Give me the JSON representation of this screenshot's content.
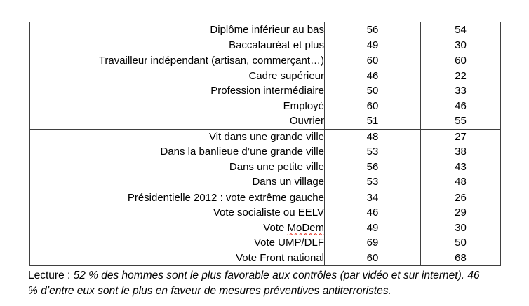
{
  "colors": {
    "border": "#3f3f3f",
    "text": "#000000",
    "spellcheck_squiggle": "#e31b0c",
    "background": "#ffffff"
  },
  "table": {
    "value_columns": 2,
    "sections": [
      {
        "name": "diplome",
        "rows": [
          {
            "label": "Diplôme inférieur au bas",
            "values": [
              "56",
              "54"
            ]
          },
          {
            "label": "Baccalauréat et plus",
            "values": [
              "49",
              "30"
            ]
          }
        ]
      },
      {
        "name": "profession",
        "rows": [
          {
            "label": "Travailleur indépendant (artisan, commerçant…)",
            "values": [
              "60",
              "60"
            ]
          },
          {
            "label": "Cadre supérieur",
            "values": [
              "46",
              "22"
            ]
          },
          {
            "label": "Profession intermédiaire",
            "values": [
              "50",
              "33"
            ]
          },
          {
            "label": "Employé",
            "values": [
              "60",
              "46"
            ]
          },
          {
            "label": "Ouvrier",
            "values": [
              "51",
              "55"
            ]
          }
        ]
      },
      {
        "name": "lieu-de-vie",
        "rows": [
          {
            "label": "Vit dans une grande ville",
            "values": [
              "48",
              "27"
            ]
          },
          {
            "label": "Dans la banlieue d’une grande ville",
            "values": [
              "53",
              "38"
            ]
          },
          {
            "label": "Dans une petite ville",
            "values": [
              "56",
              "43"
            ]
          },
          {
            "label": "Dans un village",
            "values": [
              "53",
              "48"
            ]
          }
        ]
      },
      {
        "name": "vote-2012",
        "rows": [
          {
            "label": "Présidentielle 2012 : vote extrême gauche",
            "values": [
              "34",
              "26"
            ]
          },
          {
            "label": "Vote socialiste ou EELV",
            "values": [
              "46",
              "29"
            ]
          },
          {
            "label": "Vote MoDem",
            "squiggle": "MoDem",
            "values": [
              "49",
              "30"
            ]
          },
          {
            "label": "Vote UMP/DLF",
            "values": [
              "69",
              "50"
            ]
          },
          {
            "label": "Vote Front national",
            "values": [
              "60",
              "68"
            ]
          }
        ]
      }
    ]
  },
  "footer": {
    "prefix": "Lecture :",
    "line1_rest": " 52 % des hommes sont le plus favorable aux contrôles (par vidéo et sur internet). 46",
    "line2": "% d’entre eux sont le plus en faveur de mesures préventives antiterroristes."
  }
}
